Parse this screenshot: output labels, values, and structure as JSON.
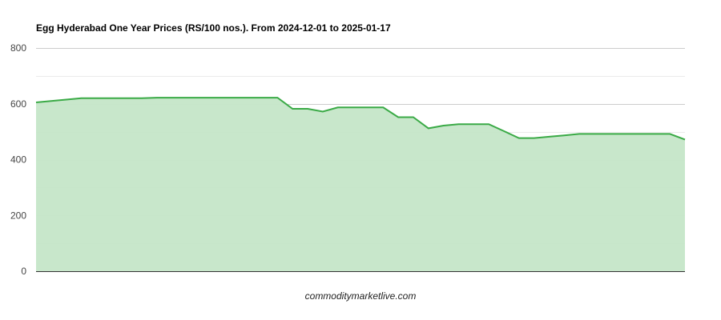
{
  "chart_data": {
    "type": "area",
    "title": "Egg Hyderabad One Year Prices (RS/100 nos.). From 2024-12-01 to 2025-01-17",
    "xlabel": "",
    "ylabel": "",
    "ylim": [
      0,
      800
    ],
    "yticks": [
      0,
      200,
      400,
      600,
      800
    ],
    "minor_grid_step": 100,
    "grid": true,
    "legend": "none",
    "line_color": "#3aaa46",
    "fill_color": "#c5e6c8",
    "values": [
      605,
      610,
      615,
      620,
      620,
      620,
      620,
      620,
      622,
      622,
      622,
      622,
      622,
      622,
      622,
      622,
      622,
      582,
      582,
      572,
      587,
      587,
      587,
      587,
      552,
      552,
      512,
      522,
      527,
      527,
      527,
      502,
      477,
      477,
      482,
      487,
      492,
      492,
      492,
      492,
      492,
      492,
      492,
      472
    ]
  },
  "credit": "commoditymarketlive.com"
}
